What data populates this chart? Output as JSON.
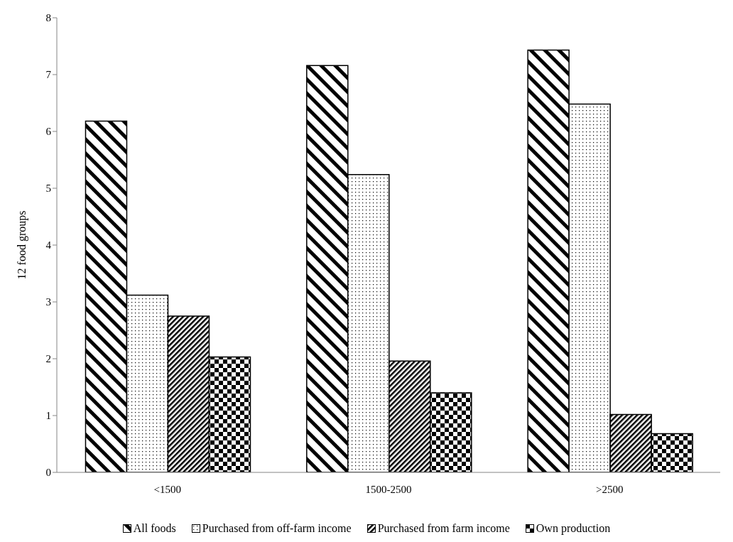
{
  "chart_data": {
    "type": "bar",
    "ylabel": "12 food groups",
    "categories": [
      "<1500",
      "1500-2500",
      ">2500"
    ],
    "series": [
      {
        "name": "All foods",
        "color": "#000000",
        "values": [
          6.18,
          7.16,
          7.43
        ]
      },
      {
        "name": "Purchased from off-farm income",
        "color": "#000000",
        "values": [
          3.12,
          5.24,
          6.48
        ]
      },
      {
        "name": "Purchased from farm income",
        "color": "#000000",
        "values": [
          2.75,
          1.96,
          1.02
        ]
      },
      {
        "name": "Own production",
        "color": "#000000",
        "values": [
          2.03,
          1.4,
          0.68
        ]
      }
    ],
    "ylim": [
      0,
      8
    ],
    "yticks": [
      0,
      1,
      2,
      3,
      4,
      5,
      6,
      7,
      8
    ],
    "grid": false,
    "legend": "bottom"
  }
}
